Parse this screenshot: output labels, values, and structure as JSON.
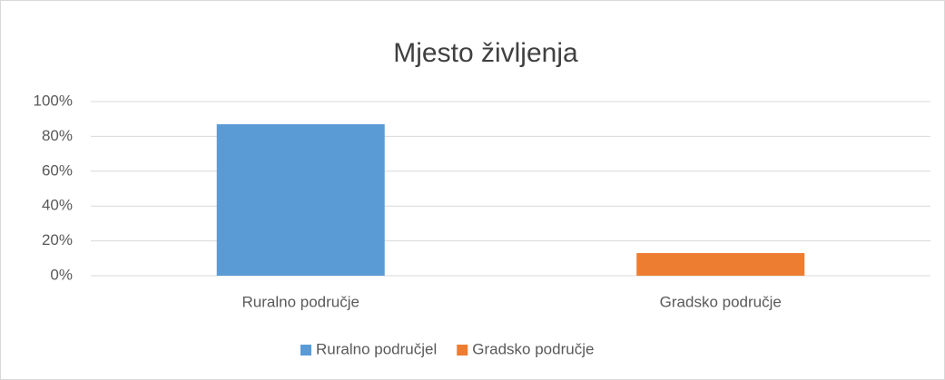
{
  "chart_data": {
    "type": "bar",
    "title": "Mjesto življenja",
    "categories": [
      "Ruralno područje",
      "Gradsko područje"
    ],
    "series": [
      {
        "name": "Ruralno područjel",
        "color": "#5b9bd5",
        "values": [
          87,
          null
        ]
      },
      {
        "name": "Gradsko područje",
        "color": "#ed7d31",
        "values": [
          null,
          13
        ]
      }
    ],
    "ylim": [
      0,
      100
    ],
    "yticks": [
      {
        "value": 0,
        "label": "0%"
      },
      {
        "value": 20,
        "label": "20%"
      },
      {
        "value": 40,
        "label": "40%"
      },
      {
        "value": 60,
        "label": "60%"
      },
      {
        "value": 80,
        "label": "80%"
      },
      {
        "value": 100,
        "label": "100%"
      }
    ],
    "grid": true,
    "legend": "bottom"
  }
}
